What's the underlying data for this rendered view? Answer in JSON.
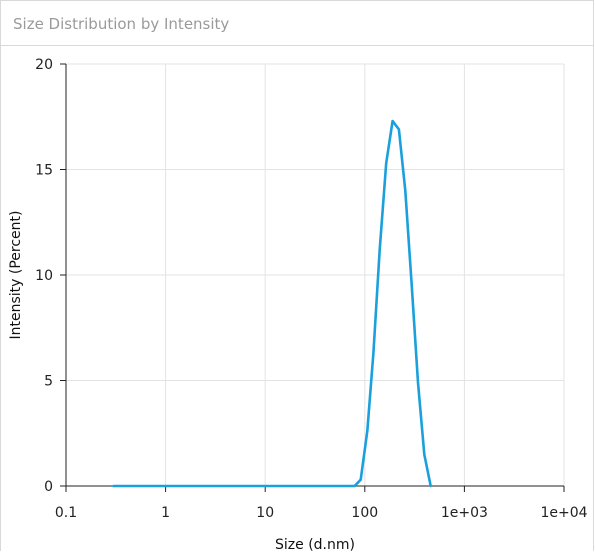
{
  "panel": {
    "title": "Size Distribution by Intensity"
  },
  "chart_data": {
    "type": "line",
    "title": "",
    "xlabel": "Size (d.nm)",
    "ylabel": "Intensity (Percent)",
    "x_scale": "log",
    "xlim": [
      0.1,
      10000
    ],
    "ylim": [
      0,
      20
    ],
    "grid": true,
    "x_ticks": [
      "0.1",
      "1",
      "10",
      "100",
      "1e+03",
      "1e+04"
    ],
    "x_tick_values": [
      0.1,
      1,
      10,
      100,
      1000,
      10000
    ],
    "y_ticks": [
      "0",
      "5",
      "10",
      "15",
      "20"
    ],
    "y_tick_values": [
      0,
      5,
      10,
      15,
      20
    ],
    "series": [
      {
        "color": "#1aa0dc",
        "x": [
          0.3,
          0.5,
          1,
          2,
          5,
          10,
          20,
          50,
          79,
          91,
          106,
          122,
          141,
          164,
          190,
          220,
          255,
          295,
          342,
          396,
          459
        ],
        "y": [
          0,
          0,
          0,
          0,
          0,
          0,
          0,
          0,
          0,
          0.3,
          2.6,
          6.3,
          11.2,
          15.3,
          17.3,
          16.9,
          14.0,
          9.6,
          4.9,
          1.5,
          0
        ]
      }
    ]
  }
}
